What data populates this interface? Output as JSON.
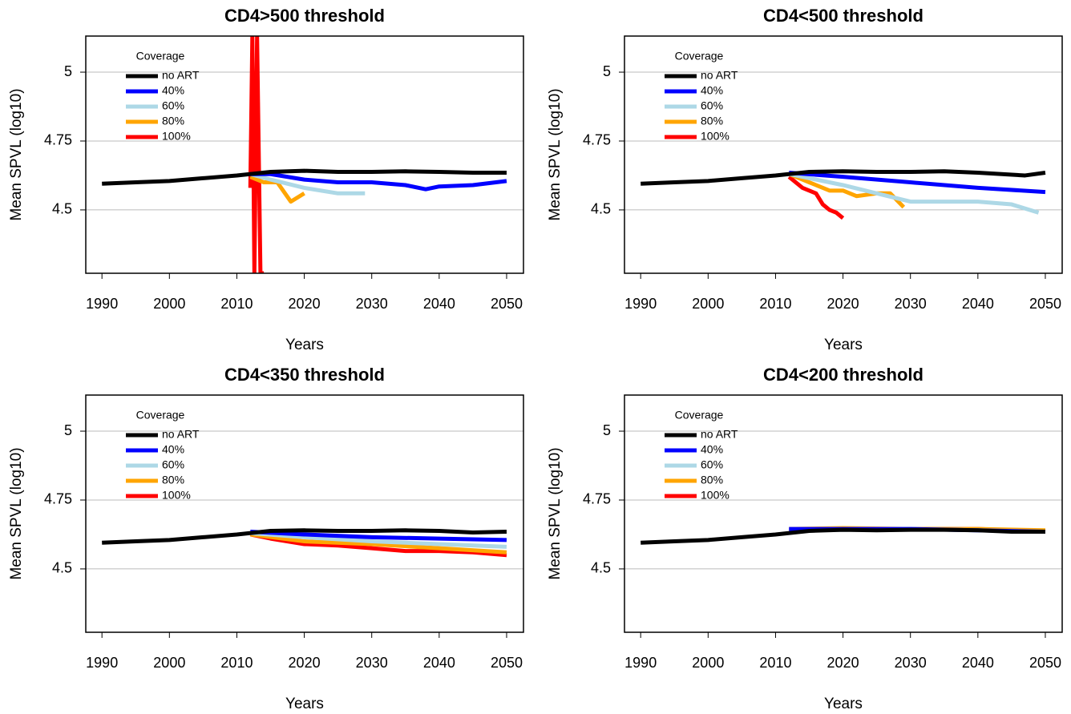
{
  "chart_data": [
    {
      "type": "line",
      "title": "CD4>500 threshold",
      "x_label": "Years",
      "y_label": "Mean SPVL (log10)",
      "legend_title": "Coverage",
      "xlim": [
        1987.6,
        2052.5
      ],
      "ylim": [
        4.27,
        5.131
      ],
      "xticks": [
        1990,
        2000,
        2010,
        2020,
        2030,
        2040,
        2050
      ],
      "yticks": [
        4.5,
        4.75,
        5
      ],
      "grid": true,
      "series": [
        {
          "name": "no ART",
          "color": "#000000",
          "x": [
            1990,
            1995,
            2000,
            2005,
            2010,
            2015,
            2020,
            2025,
            2030,
            2035,
            2040,
            2045,
            2050
          ],
          "values": [
            4.595,
            4.6,
            4.605,
            4.615,
            4.625,
            4.638,
            4.642,
            4.638,
            4.638,
            4.64,
            4.638,
            4.635,
            4.635
          ]
        },
        {
          "name": "40%",
          "color": "#0000ff",
          "x": [
            2012,
            2015,
            2020,
            2025,
            2030,
            2035,
            2038,
            2040,
            2045,
            2050
          ],
          "values": [
            4.63,
            4.63,
            4.61,
            4.6,
            4.6,
            4.59,
            4.575,
            4.585,
            4.59,
            4.605
          ]
        },
        {
          "name": "60%",
          "color": "#add8e6",
          "x": [
            2012,
            2015,
            2020,
            2025,
            2029
          ],
          "values": [
            4.63,
            4.61,
            4.58,
            4.56,
            4.56
          ]
        },
        {
          "name": "80%",
          "color": "#ffa500",
          "x": [
            2012,
            2014,
            2016,
            2018,
            2020
          ],
          "values": [
            4.62,
            4.6,
            4.6,
            4.53,
            4.56
          ]
        },
        {
          "name": "100%",
          "color": "#ff0000",
          "x": [
            2012,
            2012.3,
            2012.6,
            2013,
            2013.5,
            2014
          ],
          "values": [
            4.58,
            5.13,
            4.27,
            5.13,
            4.27,
            4.27
          ]
        }
      ]
    },
    {
      "type": "line",
      "title": "CD4<500 threshold",
      "x_label": "Years",
      "y_label": "Mean SPVL (log10)",
      "legend_title": "Coverage",
      "xlim": [
        1987.6,
        2052.5
      ],
      "ylim": [
        4.27,
        5.131
      ],
      "xticks": [
        1990,
        2000,
        2010,
        2020,
        2030,
        2040,
        2050
      ],
      "yticks": [
        4.5,
        4.75,
        5
      ],
      "grid": true,
      "series": [
        {
          "name": "no ART",
          "color": "#000000",
          "x": [
            1990,
            1995,
            2000,
            2005,
            2010,
            2015,
            2020,
            2025,
            2030,
            2035,
            2040,
            2047,
            2050
          ],
          "values": [
            4.595,
            4.6,
            4.605,
            4.615,
            4.625,
            4.638,
            4.64,
            4.638,
            4.638,
            4.64,
            4.635,
            4.625,
            4.635
          ]
        },
        {
          "name": "40%",
          "color": "#0000ff",
          "x": [
            2012,
            2020,
            2030,
            2040,
            2050
          ],
          "values": [
            4.635,
            4.62,
            4.6,
            4.58,
            4.565
          ]
        },
        {
          "name": "60%",
          "color": "#add8e6",
          "x": [
            2012,
            2020,
            2025,
            2030,
            2040,
            2045,
            2049
          ],
          "values": [
            4.63,
            4.59,
            4.56,
            4.53,
            4.53,
            4.52,
            4.49
          ]
        },
        {
          "name": "80%",
          "color": "#ffa500",
          "x": [
            2012,
            2015,
            2018,
            2020,
            2022,
            2025,
            2027,
            2029
          ],
          "values": [
            4.63,
            4.6,
            4.57,
            4.57,
            4.55,
            4.56,
            4.56,
            4.51
          ]
        },
        {
          "name": "100%",
          "color": "#ff0000",
          "x": [
            2012,
            2014,
            2016,
            2017,
            2018,
            2019,
            2020
          ],
          "values": [
            4.62,
            4.58,
            4.56,
            4.52,
            4.5,
            4.49,
            4.47
          ]
        }
      ]
    },
    {
      "type": "line",
      "title": "CD4<350 threshold",
      "x_label": "Years",
      "y_label": "Mean SPVL (log10)",
      "legend_title": "Coverage",
      "xlim": [
        1987.6,
        2052.5
      ],
      "ylim": [
        4.27,
        5.131
      ],
      "xticks": [
        1990,
        2000,
        2010,
        2020,
        2030,
        2040,
        2050
      ],
      "yticks": [
        4.5,
        4.75,
        5
      ],
      "grid": true,
      "series": [
        {
          "name": "no ART",
          "color": "#000000",
          "x": [
            1990,
            1995,
            2000,
            2005,
            2010,
            2015,
            2020,
            2025,
            2030,
            2035,
            2040,
            2045,
            2050
          ],
          "values": [
            4.595,
            4.6,
            4.605,
            4.615,
            4.625,
            4.638,
            4.64,
            4.638,
            4.638,
            4.64,
            4.638,
            4.632,
            4.635
          ]
        },
        {
          "name": "40%",
          "color": "#0000ff",
          "x": [
            2012,
            2020,
            2030,
            2040,
            2050
          ],
          "values": [
            4.635,
            4.625,
            4.615,
            4.61,
            4.605
          ]
        },
        {
          "name": "60%",
          "color": "#add8e6",
          "x": [
            2012,
            2020,
            2030,
            2040,
            2050
          ],
          "values": [
            4.63,
            4.615,
            4.6,
            4.59,
            4.58
          ]
        },
        {
          "name": "80%",
          "color": "#ffa500",
          "x": [
            2012,
            2020,
            2030,
            2040,
            2050
          ],
          "values": [
            4.625,
            4.6,
            4.59,
            4.575,
            4.56
          ]
        },
        {
          "name": "100%",
          "color": "#ff0000",
          "x": [
            2012,
            2015,
            2020,
            2025,
            2030,
            2035,
            2040,
            2045,
            2050
          ],
          "values": [
            4.625,
            4.61,
            4.59,
            4.585,
            4.575,
            4.565,
            4.565,
            4.56,
            4.55
          ]
        }
      ]
    },
    {
      "type": "line",
      "title": "CD4<200 threshold",
      "x_label": "Years",
      "y_label": "Mean SPVL (log10)",
      "legend_title": "Coverage",
      "xlim": [
        1987.6,
        2052.5
      ],
      "ylim": [
        4.27,
        5.131
      ],
      "xticks": [
        1990,
        2000,
        2010,
        2020,
        2030,
        2040,
        2050
      ],
      "yticks": [
        4.5,
        4.75,
        5
      ],
      "grid": true,
      "series": [
        {
          "name": "no ART",
          "color": "#000000",
          "x": [
            1990,
            1995,
            2000,
            2005,
            2010,
            2015,
            2020,
            2025,
            2030,
            2035,
            2040,
            2045,
            2050
          ],
          "values": [
            4.595,
            4.6,
            4.605,
            4.615,
            4.625,
            4.638,
            4.642,
            4.64,
            4.642,
            4.642,
            4.64,
            4.635,
            4.635
          ]
        },
        {
          "name": "40%",
          "color": "#0000ff",
          "x": [
            2012,
            2020,
            2030,
            2040,
            2050
          ],
          "values": [
            4.645,
            4.645,
            4.645,
            4.64,
            4.635
          ]
        },
        {
          "name": "60%",
          "color": "#add8e6",
          "x": [
            2012,
            2020,
            2030,
            2040,
            2050
          ],
          "values": [
            4.64,
            4.642,
            4.645,
            4.64,
            4.635
          ]
        },
        {
          "name": "80%",
          "color": "#ffa500",
          "x": [
            2012,
            2020,
            2030,
            2040,
            2050
          ],
          "values": [
            4.645,
            4.648,
            4.645,
            4.645,
            4.64
          ]
        },
        {
          "name": "100%",
          "color": "#ff0000",
          "x": [
            2012,
            2020,
            2030,
            2040,
            2050
          ],
          "values": [
            4.64,
            4.645,
            4.645,
            4.645,
            4.635
          ]
        }
      ]
    }
  ]
}
